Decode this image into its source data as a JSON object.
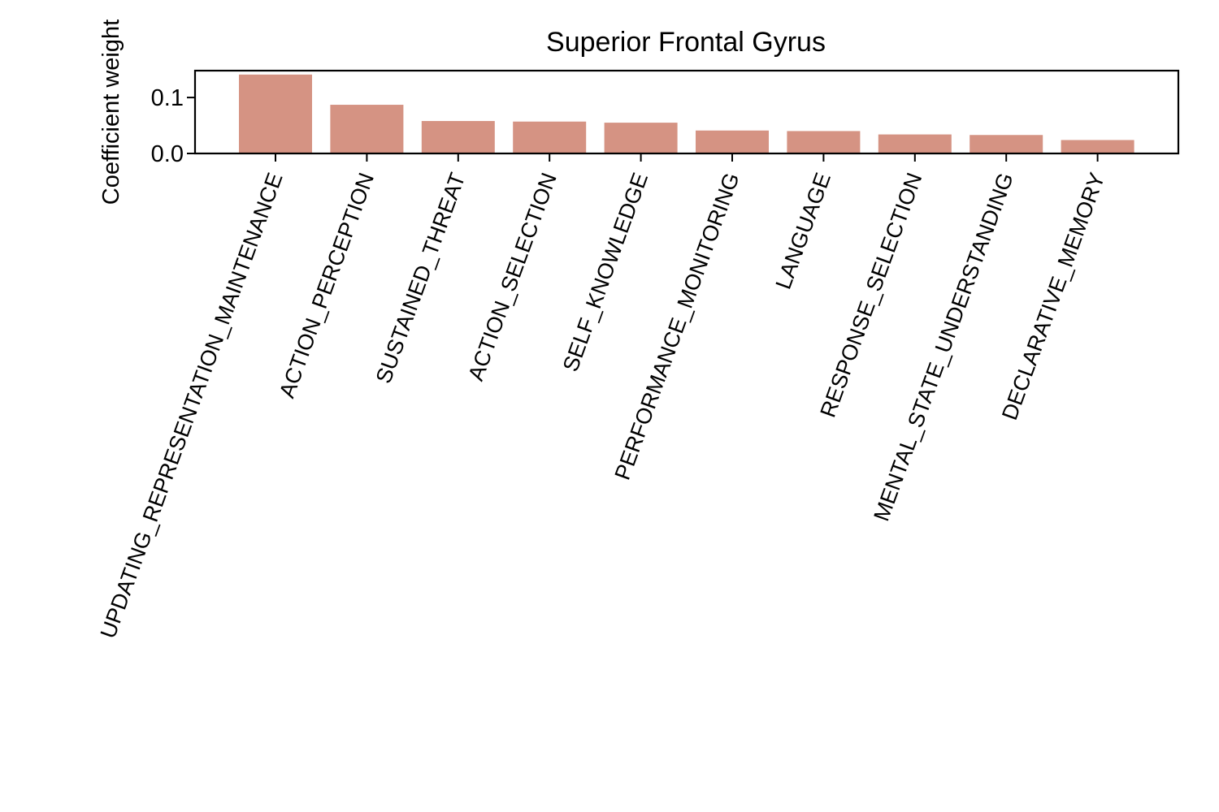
{
  "chart_data": {
    "type": "bar",
    "title": "Superior Frontal Gyrus",
    "xlabel": "",
    "ylabel": "Coefficient weight",
    "categories": [
      "UPDATING_REPRESENTATION_MAINTENANCE",
      "ACTION_PERCEPTION",
      "SUSTAINED_THREAT",
      "ACTION_SELECTION",
      "SELF_KNOWLEDGE",
      "PERFORMANCE_MONITORING",
      "LANGUAGE",
      "RESPONSE_SELECTION",
      "MENTAL_STATE_UNDERSTANDING",
      "DECLARATIVE_MEMORY"
    ],
    "values": [
      0.141,
      0.087,
      0.058,
      0.057,
      0.055,
      0.041,
      0.04,
      0.034,
      0.033,
      0.024
    ],
    "ylim": [
      0,
      0.148
    ],
    "yticks": [
      {
        "value": 0.0,
        "label": "0.0"
      },
      {
        "value": 0.1,
        "label": "0.1"
      }
    ],
    "bar_color": "#d59383",
    "grid": false,
    "legend": "none"
  }
}
